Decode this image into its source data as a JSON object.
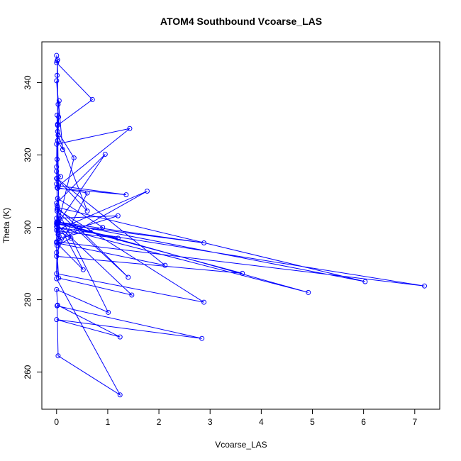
{
  "chart_data": {
    "type": "line",
    "title": "ATOM4 Southbound Vcoarse_LAS",
    "xlabel": "Vcoarse_LAS",
    "ylabel": "Theta (K)",
    "xlim": [
      0,
      7.2
    ],
    "ylim": [
      253.5,
      347.5
    ],
    "xticks": [
      0,
      1,
      2,
      3,
      4,
      5,
      6,
      7
    ],
    "yticks": [
      260,
      280,
      300,
      320,
      340
    ],
    "grid": false,
    "legend": "none",
    "series_color": "#0000ff",
    "marker": "open-circle",
    "series": [
      {
        "x": [
          0.0,
          0.01,
          0.0,
          0.7,
          0.02,
          0.02,
          0.01,
          0.03,
          0.0,
          0.12,
          0.02,
          0.04,
          0.0,
          1.43,
          0.04,
          1.36,
          0.02,
          0.01,
          0.0,
          0.6,
          0.03,
          0.0,
          0.01,
          0.05,
          0.0,
          0.02,
          0.34,
          0.04,
          0.01,
          0.0,
          0.95,
          0.02,
          0.06,
          0.0,
          0.03,
          0.01,
          0.0,
          1.77,
          0.05,
          0.02,
          0.0,
          0.6,
          0.01,
          0.03,
          1.2,
          0.0,
          0.02,
          0.9,
          0.04,
          0.0,
          1.2,
          0.03,
          0.28,
          0.01,
          0.0,
          2.88,
          0.02,
          0.0,
          0.08,
          0.01,
          2.12,
          0.0,
          0.52,
          0.03,
          3.63,
          0.0,
          0.01,
          1.4,
          0.02,
          6.03,
          0.0,
          4.92,
          0.01,
          7.19,
          0.0,
          0.04,
          1.47,
          0.01,
          0.0,
          2.88,
          0.01,
          1.01,
          0.0,
          0.02,
          1.24,
          0.0,
          2.84,
          0.01,
          0.03,
          1.24,
          0.0,
          0.05,
          0.01
        ],
        "y": [
          347.5,
          346.0,
          345.5,
          335.3,
          328.2,
          346.3,
          342.0,
          334.0,
          340.5,
          321.5,
          324.0,
          330.5,
          323.0,
          327.3,
          311.5,
          309.0,
          310.8,
          318.8,
          313.5,
          304.5,
          325.5,
          316.7,
          331.0,
          335.0,
          312.0,
          326.5,
          319.2,
          301.5,
          305.0,
          306.7,
          320.2,
          301.0,
          302.3,
          300.2,
          301.5,
          306.0,
          299.2,
          310.0,
          296.3,
          328.5,
          293.0,
          309.5,
          311.0,
          298.0,
          303.2,
          302.5,
          308.0,
          300.0,
          297.0,
          301.0,
          297.0,
          299.0,
          297.0,
          295.0,
          301.0,
          295.7,
          301.5,
          315.5,
          314.0,
          313.5,
          289.5,
          295.7,
          288.3,
          301.0,
          287.3,
          292.0,
          304.5,
          286.2,
          305.5,
          285.0,
          301.5,
          282.0,
          300.0,
          283.8,
          296.0,
          286.0,
          281.3,
          300.8,
          287.2,
          279.3,
          305.0,
          276.5,
          282.8,
          278.5,
          269.7,
          274.5,
          269.3,
          278.3,
          264.5,
          253.7,
          285.8,
          297.5,
          296.0
        ]
      }
    ]
  }
}
